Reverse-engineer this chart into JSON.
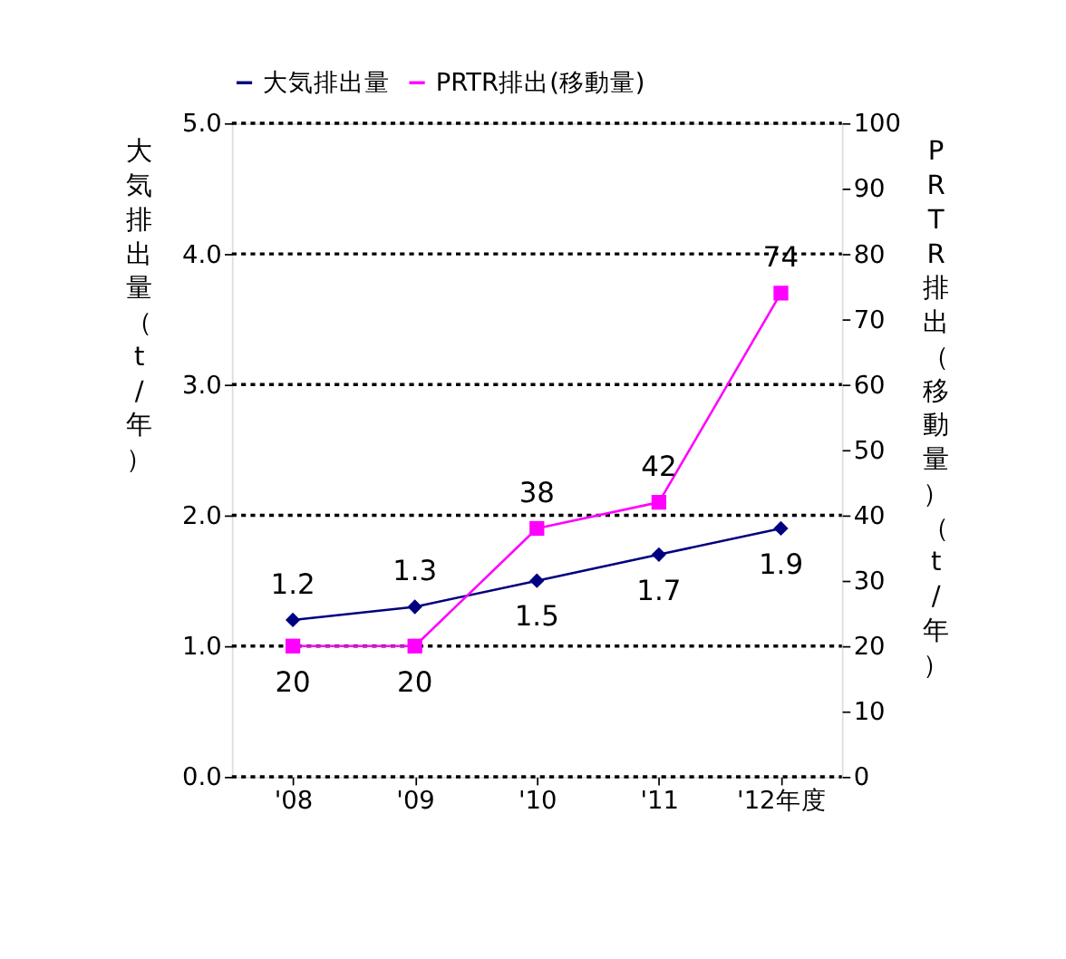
{
  "chart_data": {
    "type": "line",
    "categories": [
      "'08",
      "'09",
      "'10",
      "'11",
      "'12年度"
    ],
    "ylabel": "大気排出量（t/年）",
    "y2label": "PRTR排出（移動量）（t/年）",
    "ylim": [
      0,
      5
    ],
    "yticks": [
      {
        "value": 0,
        "label": "0.0"
      },
      {
        "value": 1,
        "label": "1.0"
      },
      {
        "value": 2,
        "label": "2.0"
      },
      {
        "value": 3,
        "label": "3.0"
      },
      {
        "value": 4,
        "label": "4.0"
      },
      {
        "value": 5,
        "label": "5.0"
      }
    ],
    "y2lim": [
      0,
      100
    ],
    "y2ticks": [
      0,
      10,
      20,
      30,
      40,
      50,
      60,
      70,
      80,
      90,
      100
    ],
    "series": [
      {
        "name": "大気排出量",
        "color": "#000080",
        "marker": "diamond",
        "values": [
          1.2,
          1.3,
          1.5,
          1.7,
          1.9
        ]
      },
      {
        "name": "PRTR排出(移動量)",
        "color": "#ff00ff",
        "marker": "square",
        "axis": "y2",
        "values": [
          20,
          20,
          38,
          42,
          74
        ]
      }
    ],
    "data_labels": true,
    "grid": "y",
    "line_style": "solid",
    "legend": "top"
  }
}
